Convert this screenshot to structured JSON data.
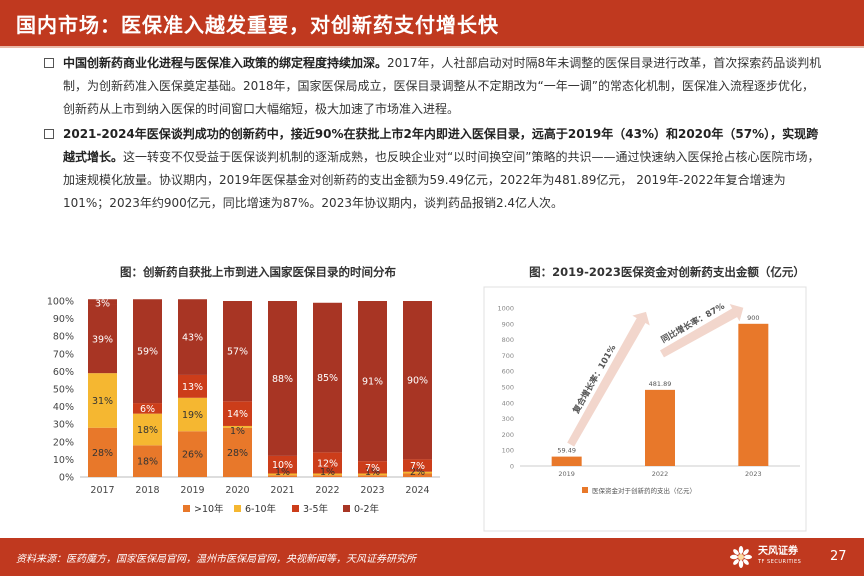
{
  "header": {
    "title": "国内市场：医保准入越发重要，对创新药支付增长快"
  },
  "bullets": [
    {
      "bold": "中国创新药商业化进程与医保准入政策的绑定程度持续加深。",
      "text": "2017年，人社部启动对时隔8年未调整的医保目录进行改革，首次探索药品谈判机制，为创新药准入医保奠定基础。2018年，国家医保局成立，医保目录调整从不定期改为“一年一调”的常态化机制，医保准入流程逐步优化，创新药从上市到纳入医保的时间窗口大幅缩短，极大加速了市场准入进程。"
    },
    {
      "bold": "2021-2024年医保谈判成功的创新药中，接近90%在获批上市2年内即进入医保目录，远高于2019年（43%）和2020年（57%），实现跨越式增长。",
      "text": "这一转变不仅受益于医保谈判机制的逐渐成熟，也反映企业对“以时间换空间”策略的共识——通过快速纳入医保抢占核心医院市场，加速规模化放量。协议期内，2019年医保基金对创新药的支出金额为59.49亿元，2022年为481.89亿元， 2019年-2022年复合增速为101%；2023年约900亿元，同比增速为87%。2023年协议期内，谈判药品报销2.4亿人次。"
    }
  ],
  "chart_left": {
    "title": "图：创新药自获批上市到进入国家医保目录的时间分布"
  },
  "chart_right": {
    "title": "图：2019-2023医保资金对创新药支出金额（亿元）"
  },
  "chart_data": [
    {
      "type": "bar",
      "stacked": true,
      "title": "图：创新药自获批上市到进入国家医保目录的时间分布",
      "categories": [
        "2017",
        "2018",
        "2019",
        "2020",
        "2021",
        "2022",
        "2023",
        "2024"
      ],
      "series": [
        {
          "name": ">10年",
          "color": "#e8782a",
          "values": [
            28,
            18,
            26,
            28,
            1,
            1,
            1,
            2
          ],
          "labels": [
            "28%",
            "18%",
            "26%",
            "28%",
            "1%",
            "1%",
            "1%",
            "2%"
          ]
        },
        {
          "name": "6-10年",
          "color": "#f5b731",
          "values": [
            31,
            18,
            19,
            1,
            1,
            1,
            1,
            1
          ],
          "labels": [
            "31%",
            "18%",
            "19%",
            "1%",
            "",
            "",
            "",
            ""
          ]
        },
        {
          "name": "3-5年",
          "color": "#cc3d1a",
          "values": [
            0,
            6,
            13,
            14,
            10,
            12,
            7,
            7
          ],
          "labels": [
            "",
            "6%",
            "13%",
            "14%",
            "10%",
            "12%",
            "7%",
            "7%"
          ]
        },
        {
          "name": "0-2年",
          "color": "#a83524",
          "values": [
            39,
            59,
            43,
            57,
            88,
            85,
            91,
            90
          ],
          "labels": [
            "39%",
            "59%",
            "43%",
            "57%",
            "88%",
            "85%",
            "91%",
            "90%"
          ]
        }
      ],
      "top_labels": [
        "3%",
        "",
        "",
        "",
        "",
        "",
        "",
        ""
      ],
      "top_fill": [
        3,
        0,
        0,
        0,
        0,
        0,
        0,
        0
      ],
      "y_ticks": [
        "0%",
        "10%",
        "20%",
        "30%",
        "40%",
        "50%",
        "60%",
        "70%",
        "80%",
        "90%",
        "100%"
      ],
      "ylim": [
        0,
        100
      ],
      "legend_position": "bottom"
    },
    {
      "type": "bar",
      "title": "图：2019-2023医保资金对创新药支出金额（亿元）",
      "categories": [
        "2019",
        "2022",
        "2023"
      ],
      "values": [
        59.49,
        481.89,
        900
      ],
      "value_labels": [
        "59.49",
        "481.89",
        "900"
      ],
      "series_name": "医保资金对于创新药的支出（亿元）",
      "color": "#e8782a",
      "y_ticks": [
        "0",
        "100",
        "200",
        "300",
        "400",
        "500",
        "600",
        "700",
        "800",
        "900",
        "1000"
      ],
      "ylim": [
        0,
        1000
      ],
      "annotations": [
        "复合增长率：101%",
        "同比增长率：87%"
      ],
      "legend_position": "bottom"
    }
  ],
  "footer": {
    "source": "资料来源：医药魔方，国家医保局官网，温州市医保局官网，央视新闻等，天风证券研究所",
    "brand": "天风证券",
    "brand_sub": "TF SECURITIES",
    "page": "27"
  }
}
